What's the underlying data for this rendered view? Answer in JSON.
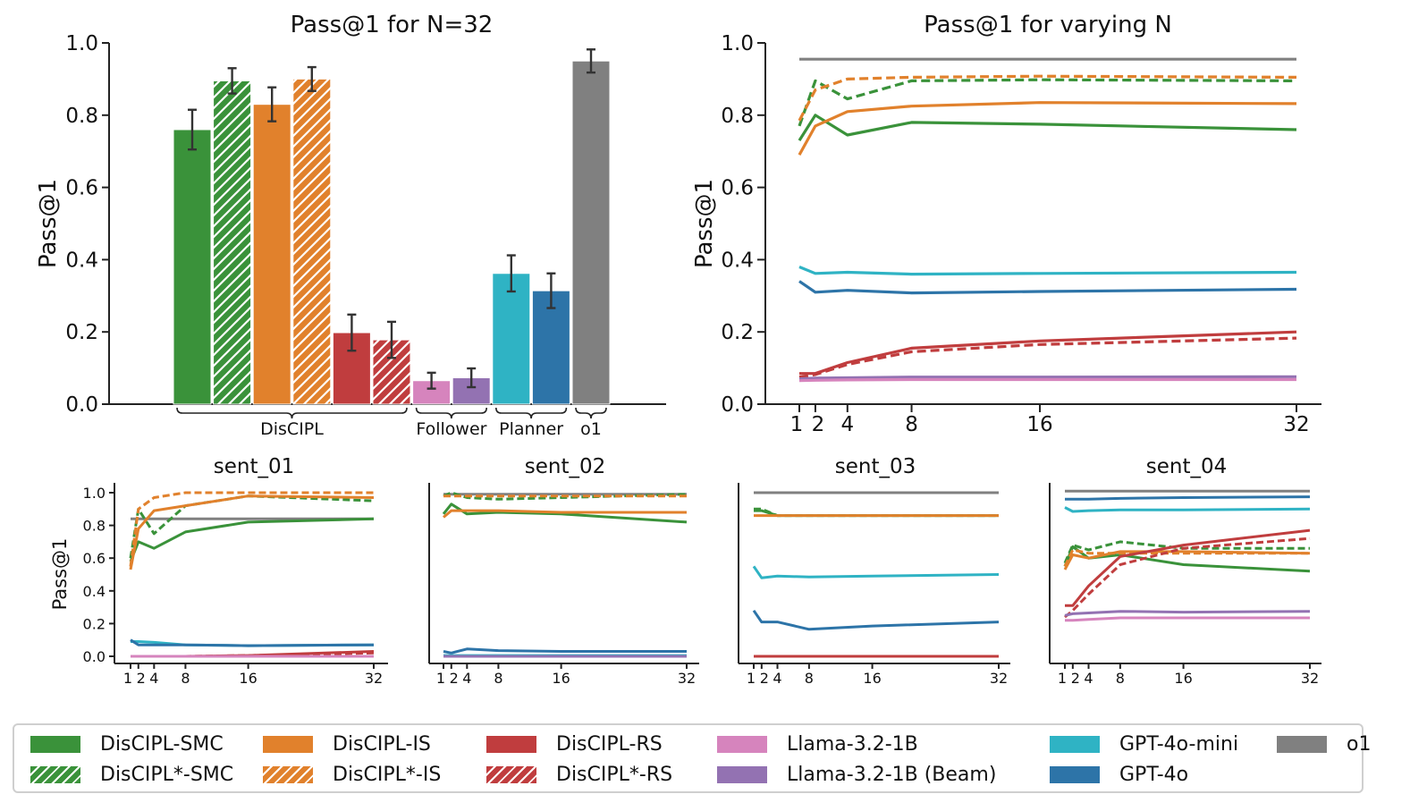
{
  "colors": {
    "smc": "#3a923a",
    "is": "#e1812c",
    "rs": "#c03d3e",
    "llama": "#d684bd",
    "beam": "#9372b2",
    "mini": "#2fb3c4",
    "gpt4o": "#2d74a8",
    "o1": "#808080"
  },
  "legend": [
    {
      "label": "DisCIPL-SMC",
      "color": "#3a923a",
      "hatched": false
    },
    {
      "label": "DisCIPL*-SMC",
      "color": "#3a923a",
      "hatched": true
    },
    {
      "label": "DisCIPL-IS",
      "color": "#e1812c",
      "hatched": false
    },
    {
      "label": "DisCIPL*-IS",
      "color": "#e1812c",
      "hatched": true
    },
    {
      "label": "DisCIPL-RS",
      "color": "#c03d3e",
      "hatched": false
    },
    {
      "label": "DisCIPL*-RS",
      "color": "#c03d3e",
      "hatched": true
    },
    {
      "label": "Llama-3.2-1B",
      "color": "#d684bd",
      "hatched": false
    },
    {
      "label": "Llama-3.2-1B (Beam)",
      "color": "#9372b2",
      "hatched": false
    },
    {
      "label": "GPT-4o-mini",
      "color": "#2fb3c4",
      "hatched": false
    },
    {
      "label": "GPT-4o",
      "color": "#2d74a8",
      "hatched": false
    },
    {
      "label": "o1",
      "color": "#808080",
      "hatched": false
    }
  ],
  "chart_data": [
    {
      "type": "bar",
      "title": "Pass@1 for N=32",
      "ylabel": "Pass@1",
      "ylim": [
        0,
        1.0
      ],
      "yticks": [
        "0.0",
        "0.2",
        "0.4",
        "0.6",
        "0.8",
        "1.0"
      ],
      "bars": [
        {
          "name": "DisCIPL-SMC",
          "value": 0.76,
          "err": 0.055,
          "color": "#3a923a",
          "hatched": false
        },
        {
          "name": "DisCIPL*-SMC",
          "value": 0.895,
          "err": 0.035,
          "color": "#3a923a",
          "hatched": true
        },
        {
          "name": "DisCIPL-IS",
          "value": 0.83,
          "err": 0.047,
          "color": "#e1812c",
          "hatched": false
        },
        {
          "name": "DisCIPL*-IS",
          "value": 0.9,
          "err": 0.033,
          "color": "#e1812c",
          "hatched": true
        },
        {
          "name": "DisCIPL-RS",
          "value": 0.198,
          "err": 0.05,
          "color": "#c03d3e",
          "hatched": false
        },
        {
          "name": "DisCIPL*-RS",
          "value": 0.178,
          "err": 0.05,
          "color": "#c03d3e",
          "hatched": true
        },
        {
          "name": "Llama-3.2-1B",
          "value": 0.065,
          "err": 0.022,
          "color": "#d684bd",
          "hatched": false
        },
        {
          "name": "Llama-3.2-1B (Beam)",
          "value": 0.073,
          "err": 0.026,
          "color": "#9372b2",
          "hatched": false
        },
        {
          "name": "GPT-4o-mini",
          "value": 0.362,
          "err": 0.05,
          "color": "#2fb3c4",
          "hatched": false
        },
        {
          "name": "GPT-4o",
          "value": 0.314,
          "err": 0.048,
          "color": "#2d74a8",
          "hatched": false
        },
        {
          "name": "o1",
          "value": 0.95,
          "err": 0.032,
          "color": "#808080",
          "hatched": false
        }
      ],
      "groups": [
        {
          "label": "DisCIPL",
          "from": 0,
          "to": 5
        },
        {
          "label": "Follower",
          "from": 6,
          "to": 7
        },
        {
          "label": "Planner",
          "from": 8,
          "to": 9
        },
        {
          "label": "o1",
          "from": 10,
          "to": 10
        }
      ]
    },
    {
      "type": "line",
      "title": "Pass@1 for varying N",
      "ylabel": "Pass@1",
      "x": [
        1,
        2,
        4,
        8,
        16,
        32
      ],
      "xticks": [
        "1",
        "2",
        "4",
        "8",
        "16",
        "32"
      ],
      "ylim": [
        0,
        1.0
      ],
      "yticks": [
        "0.0",
        "0.2",
        "0.4",
        "0.6",
        "0.8",
        "1.0"
      ],
      "series": [
        {
          "name": "o1",
          "color": "#808080",
          "dashed": false,
          "values": [
            0.955,
            0.955,
            0.955,
            0.955,
            0.955,
            0.955
          ]
        },
        {
          "name": "DisCIPL-SMC",
          "color": "#3a923a",
          "dashed": false,
          "values": [
            0.73,
            0.8,
            0.745,
            0.78,
            0.775,
            0.76
          ]
        },
        {
          "name": "DisCIPL*-SMC",
          "color": "#3a923a",
          "dashed": true,
          "values": [
            0.77,
            0.895,
            0.845,
            0.895,
            0.898,
            0.895
          ]
        },
        {
          "name": "DisCIPL-IS",
          "color": "#e1812c",
          "dashed": false,
          "values": [
            0.69,
            0.77,
            0.81,
            0.825,
            0.835,
            0.832
          ]
        },
        {
          "name": "DisCIPL*-IS",
          "color": "#e1812c",
          "dashed": true,
          "values": [
            0.785,
            0.87,
            0.9,
            0.905,
            0.908,
            0.905
          ]
        },
        {
          "name": "GPT-4o-mini",
          "color": "#2fb3c4",
          "dashed": false,
          "values": [
            0.38,
            0.362,
            0.365,
            0.36,
            0.362,
            0.365
          ]
        },
        {
          "name": "GPT-4o",
          "color": "#2d74a8",
          "dashed": false,
          "values": [
            0.34,
            0.31,
            0.315,
            0.308,
            0.312,
            0.318
          ]
        },
        {
          "name": "DisCIPL-RS",
          "color": "#c03d3e",
          "dashed": false,
          "values": [
            0.085,
            0.085,
            0.115,
            0.155,
            0.175,
            0.2
          ]
        },
        {
          "name": "DisCIPL*-RS",
          "color": "#c03d3e",
          "dashed": true,
          "values": [
            0.075,
            0.082,
            0.11,
            0.145,
            0.165,
            0.183
          ]
        },
        {
          "name": "Llama-3.2-1B (Beam)",
          "color": "#9372b2",
          "dashed": false,
          "values": [
            0.07,
            0.072,
            0.073,
            0.075,
            0.075,
            0.076
          ]
        },
        {
          "name": "Llama-3.2-1B",
          "color": "#d684bd",
          "dashed": false,
          "values": [
            0.065,
            0.066,
            0.067,
            0.068,
            0.068,
            0.068
          ]
        }
      ]
    },
    {
      "type": "line",
      "title": "sent_01",
      "ylabel": "Pass@1",
      "x": [
        1,
        2,
        4,
        8,
        16,
        32
      ],
      "xticks": [
        "1",
        "2",
        "4",
        "8",
        "16",
        "32"
      ],
      "ylim": [
        0,
        1.0
      ],
      "yticks": [
        "0.0",
        "0.2",
        "0.4",
        "0.6",
        "0.8",
        "1.0"
      ],
      "series": [
        {
          "name": "o1",
          "color": "#808080",
          "dashed": false,
          "values": [
            0.84,
            0.84,
            0.84,
            0.84,
            0.84,
            0.84
          ]
        },
        {
          "name": "DisCIPL-SMC",
          "color": "#3a923a",
          "dashed": false,
          "values": [
            0.58,
            0.7,
            0.66,
            0.76,
            0.82,
            0.84
          ]
        },
        {
          "name": "DisCIPL*-SMC",
          "color": "#3a923a",
          "dashed": true,
          "values": [
            0.6,
            0.9,
            0.75,
            0.92,
            0.98,
            0.95
          ]
        },
        {
          "name": "DisCIPL-IS",
          "color": "#e1812c",
          "dashed": false,
          "values": [
            0.53,
            0.78,
            0.89,
            0.92,
            0.98,
            0.97
          ]
        },
        {
          "name": "DisCIPL*-IS",
          "color": "#e1812c",
          "dashed": true,
          "values": [
            0.55,
            0.9,
            0.97,
            1.0,
            1.0,
            1.0
          ]
        },
        {
          "name": "GPT-4o-mini",
          "color": "#2fb3c4",
          "dashed": false,
          "values": [
            0.09,
            0.09,
            0.085,
            0.07,
            0.065,
            0.07
          ]
        },
        {
          "name": "GPT-4o",
          "color": "#2d74a8",
          "dashed": false,
          "values": [
            0.1,
            0.07,
            0.07,
            0.07,
            0.065,
            0.07
          ]
        },
        {
          "name": "DisCIPL-RS",
          "color": "#c03d3e",
          "dashed": false,
          "values": [
            0.0,
            0.0,
            0.0,
            0.0,
            0.005,
            0.03
          ]
        },
        {
          "name": "DisCIPL*-RS",
          "color": "#c03d3e",
          "dashed": true,
          "values": [
            0.0,
            0.0,
            0.0,
            0.0,
            0.005,
            0.02
          ]
        },
        {
          "name": "Llama-3.2-1B (Beam)",
          "color": "#9372b2",
          "dashed": false,
          "values": [
            0.0,
            0.0,
            0.0,
            0.0,
            0.0,
            0.0
          ]
        },
        {
          "name": "Llama-3.2-1B",
          "color": "#d684bd",
          "dashed": false,
          "values": [
            0.0,
            0.0,
            0.0,
            0.0,
            0.0,
            0.0
          ]
        }
      ]
    },
    {
      "type": "line",
      "title": "sent_02",
      "ylabel": "",
      "x": [
        1,
        2,
        4,
        8,
        16,
        32
      ],
      "xticks": [
        "1",
        "2",
        "4",
        "8",
        "16",
        "32"
      ],
      "ylim": [
        0,
        1.0
      ],
      "yticks": [],
      "series": [
        {
          "name": "o1",
          "color": "#808080",
          "dashed": false,
          "values": [
            0.99,
            0.99,
            0.99,
            0.99,
            0.99,
            0.99
          ]
        },
        {
          "name": "DisCIPL-SMC",
          "color": "#3a923a",
          "dashed": false,
          "values": [
            0.87,
            0.93,
            0.87,
            0.88,
            0.87,
            0.82
          ]
        },
        {
          "name": "DisCIPL*-SMC",
          "color": "#3a923a",
          "dashed": true,
          "values": [
            0.98,
            1.0,
            0.97,
            0.96,
            0.97,
            0.99
          ]
        },
        {
          "name": "DisCIPL-IS",
          "color": "#e1812c",
          "dashed": false,
          "values": [
            0.85,
            0.89,
            0.89,
            0.89,
            0.88,
            0.88
          ]
        },
        {
          "name": "DisCIPL*-IS",
          "color": "#e1812c",
          "dashed": true,
          "values": [
            0.98,
            0.98,
            0.98,
            0.98,
            0.98,
            0.98
          ]
        },
        {
          "name": "GPT-4o",
          "color": "#2d74a8",
          "dashed": false,
          "values": [
            0.03,
            0.02,
            0.045,
            0.035,
            0.03,
            0.03
          ]
        },
        {
          "name": "GPT-4o-mini",
          "color": "#2fb3c4",
          "dashed": false,
          "values": [
            0.005,
            0.005,
            0.005,
            0.005,
            0.005,
            0.005
          ]
        },
        {
          "name": "DisCIPL-RS",
          "color": "#c03d3e",
          "dashed": false,
          "values": [
            0.0,
            0.0,
            0.0,
            0.0,
            0.0,
            0.0
          ]
        },
        {
          "name": "Llama-3.2-1B (Beam)",
          "color": "#9372b2",
          "dashed": false,
          "values": [
            0.0,
            0.0,
            0.0,
            0.0,
            0.0,
            0.0
          ]
        }
      ]
    },
    {
      "type": "line",
      "title": "sent_03",
      "ylabel": "",
      "x": [
        1,
        2,
        4,
        8,
        16,
        32
      ],
      "xticks": [
        "1",
        "2",
        "4",
        "8",
        "16",
        "32"
      ],
      "ylim": [
        0,
        1.0
      ],
      "yticks": [],
      "series": [
        {
          "name": "o1",
          "color": "#808080",
          "dashed": false,
          "values": [
            1.0,
            1.0,
            1.0,
            1.0,
            1.0,
            1.0
          ]
        },
        {
          "name": "DisCIPL*-SMC",
          "color": "#3a923a",
          "dashed": true,
          "values": [
            0.9,
            0.9,
            0.86,
            0.86,
            0.86,
            0.86
          ]
        },
        {
          "name": "DisCIPL-SMC",
          "color": "#3a923a",
          "dashed": false,
          "values": [
            0.89,
            0.89,
            0.86,
            0.86,
            0.86,
            0.86
          ]
        },
        {
          "name": "DisCIPL-IS",
          "color": "#e1812c",
          "dashed": false,
          "values": [
            0.86,
            0.86,
            0.86,
            0.86,
            0.86,
            0.86
          ]
        },
        {
          "name": "GPT-4o-mini",
          "color": "#2fb3c4",
          "dashed": false,
          "values": [
            0.55,
            0.48,
            0.49,
            0.485,
            0.49,
            0.5
          ]
        },
        {
          "name": "GPT-4o",
          "color": "#2d74a8",
          "dashed": false,
          "values": [
            0.28,
            0.21,
            0.21,
            0.165,
            0.185,
            0.21
          ]
        },
        {
          "name": "Llama-3.2-1B (Beam)",
          "color": "#9372b2",
          "dashed": false,
          "values": [
            0.0,
            0.0,
            0.0,
            0.0,
            0.0,
            0.0
          ]
        },
        {
          "name": "DisCIPL-RS",
          "color": "#c03d3e",
          "dashed": false,
          "values": [
            0.0,
            0.0,
            0.0,
            0.0,
            0.0,
            0.0
          ]
        }
      ]
    },
    {
      "type": "line",
      "title": "sent_04",
      "ylabel": "",
      "x": [
        1,
        2,
        4,
        8,
        16,
        32
      ],
      "xticks": [
        "1",
        "2",
        "4",
        "8",
        "16",
        "32"
      ],
      "ylim": [
        0,
        1.0
      ],
      "yticks": [],
      "series": [
        {
          "name": "o1",
          "color": "#808080",
          "dashed": false,
          "values": [
            1.01,
            1.01,
            1.01,
            1.01,
            1.01,
            1.01
          ]
        },
        {
          "name": "GPT-4o",
          "color": "#2d74a8",
          "dashed": false,
          "values": [
            0.96,
            0.96,
            0.96,
            0.965,
            0.97,
            0.975
          ]
        },
        {
          "name": "GPT-4o-mini",
          "color": "#2fb3c4",
          "dashed": false,
          "values": [
            0.91,
            0.885,
            0.89,
            0.895,
            0.895,
            0.9
          ]
        },
        {
          "name": "DisCIPL-SMC",
          "color": "#3a923a",
          "dashed": false,
          "values": [
            0.55,
            0.67,
            0.6,
            0.62,
            0.56,
            0.52
          ]
        },
        {
          "name": "DisCIPL*-SMC",
          "color": "#3a923a",
          "dashed": true,
          "values": [
            0.57,
            0.68,
            0.65,
            0.7,
            0.66,
            0.66
          ]
        },
        {
          "name": "DisCIPL-IS",
          "color": "#e1812c",
          "dashed": false,
          "values": [
            0.53,
            0.62,
            0.6,
            0.64,
            0.64,
            0.63
          ]
        },
        {
          "name": "DisCIPL*-IS",
          "color": "#e1812c",
          "dashed": true,
          "values": [
            0.55,
            0.65,
            0.63,
            0.63,
            0.63,
            0.63
          ]
        },
        {
          "name": "DisCIPL-RS",
          "color": "#c03d3e",
          "dashed": false,
          "values": [
            0.31,
            0.31,
            0.43,
            0.61,
            0.68,
            0.77
          ]
        },
        {
          "name": "DisCIPL*-RS",
          "color": "#c03d3e",
          "dashed": true,
          "values": [
            0.24,
            0.28,
            0.38,
            0.56,
            0.66,
            0.72
          ]
        },
        {
          "name": "Llama-3.2-1B (Beam)",
          "color": "#9372b2",
          "dashed": false,
          "values": [
            0.25,
            0.26,
            0.265,
            0.275,
            0.27,
            0.275
          ]
        },
        {
          "name": "Llama-3.2-1B",
          "color": "#d684bd",
          "dashed": false,
          "values": [
            0.22,
            0.22,
            0.225,
            0.235,
            0.235,
            0.235
          ]
        }
      ]
    }
  ]
}
